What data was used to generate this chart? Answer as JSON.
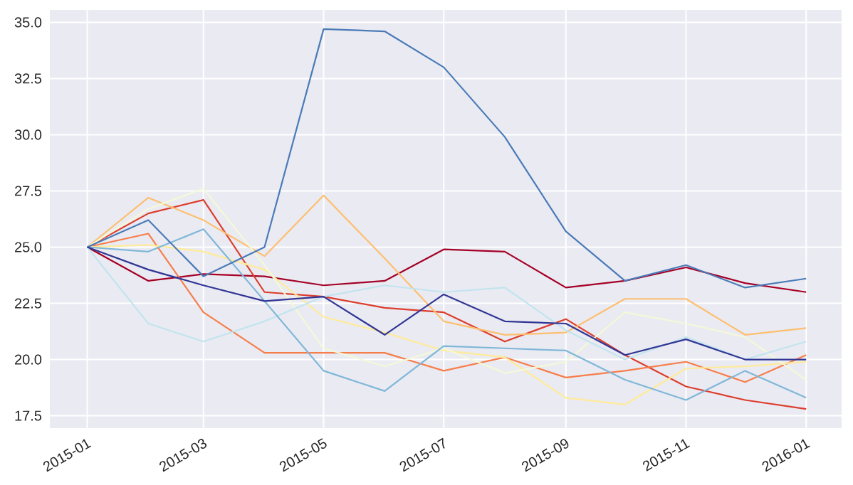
{
  "chart_data": {
    "type": "line",
    "x": [
      "2015-01",
      "2015-02",
      "2015-03",
      "2015-04",
      "2015-05",
      "2015-06",
      "2015-07",
      "2015-08",
      "2015-09",
      "2015-10",
      "2015-11",
      "2015-12",
      "2016-01"
    ],
    "series": [
      {
        "color": "#a50026",
        "values": [
          25.0,
          23.5,
          23.8,
          23.7,
          23.3,
          23.5,
          24.9,
          24.8,
          23.2,
          23.5,
          24.1,
          23.4,
          23.0
        ]
      },
      {
        "color": "#dd3d2d",
        "values": [
          25.0,
          26.5,
          27.1,
          23.0,
          22.8,
          22.3,
          22.1,
          20.8,
          21.8,
          20.2,
          18.8,
          18.2,
          17.8
        ]
      },
      {
        "color": "#f67e4b",
        "values": [
          25.0,
          25.6,
          22.1,
          20.3,
          20.3,
          20.3,
          19.5,
          20.1,
          19.2,
          19.5,
          19.9,
          19.0,
          20.2
        ]
      },
      {
        "color": "#fdbf6f",
        "values": [
          25.0,
          27.2,
          26.2,
          24.6,
          27.3,
          24.5,
          21.7,
          21.1,
          21.2,
          22.7,
          22.7,
          21.1,
          21.4
        ]
      },
      {
        "color": "#feeb9a",
        "values": [
          25.0,
          25.1,
          24.8,
          24.0,
          21.9,
          21.2,
          20.4,
          20.1,
          18.3,
          18.0,
          19.6,
          19.7,
          19.9
        ]
      },
      {
        "color": "#f3f9d8",
        "values": [
          25.0,
          26.7,
          27.6,
          24.2,
          20.5,
          19.7,
          20.5,
          19.4,
          19.9,
          22.1,
          21.6,
          21.0,
          19.1
        ]
      },
      {
        "color": "#c2e4ef",
        "values": [
          25.0,
          21.6,
          20.8,
          21.7,
          22.8,
          23.3,
          23.0,
          23.2,
          21.3,
          20.0,
          21.0,
          20.0,
          20.8
        ]
      },
      {
        "color": "#7fb7d8",
        "values": [
          25.0,
          24.8,
          25.8,
          22.6,
          19.5,
          18.6,
          20.6,
          20.5,
          20.4,
          19.1,
          18.2,
          19.5,
          18.3
        ]
      },
      {
        "color": "#4a7bb7",
        "values": [
          25.0,
          26.2,
          23.7,
          25.0,
          34.7,
          34.6,
          33.0,
          29.9,
          25.7,
          23.5,
          24.2,
          23.2,
          23.6
        ]
      },
      {
        "color": "#313695",
        "values": [
          25.0,
          24.0,
          23.3,
          22.6,
          22.8,
          21.1,
          22.9,
          21.7,
          21.6,
          20.2,
          20.9,
          20.0,
          20.0
        ]
      }
    ],
    "xlim": [
      "2014-12-13",
      "2016-01-19"
    ],
    "xticks": [
      "2015-01",
      "2015-03",
      "2015-05",
      "2015-07",
      "2015-09",
      "2015-11",
      "2016-01"
    ],
    "ylim": [
      16.95,
      35.55
    ],
    "yticks": [
      17.5,
      {
        "value": 20,
        "label": "20.0"
      },
      22.5,
      {
        "value": 25,
        "label": "25.0"
      },
      27.5,
      {
        "value": 30,
        "label": "30.0"
      },
      32.5,
      {
        "value": 35,
        "label": "35.0"
      }
    ],
    "grid": true
  }
}
